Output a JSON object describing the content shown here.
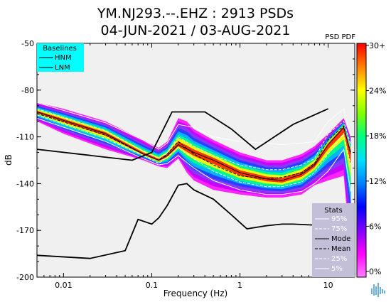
{
  "chart_data": {
    "type": "heatmap",
    "title": "YM.NJ293.--.EHZ : 2913 PSDs",
    "subtitle": "04-JUN-2021 / 03-AUG-2021",
    "xlabel": "Frequency (Hz)",
    "ylabel": "dB",
    "x_scale": "log",
    "xlim": [
      0.005,
      20
    ],
    "ylim": [
      -200,
      -50
    ],
    "x_ticks": [
      "0.01",
      "0.1",
      "1",
      "10"
    ],
    "y_ticks": [
      "-50",
      "-80",
      "-110",
      "-140",
      "-170",
      "-200"
    ],
    "colorbar": {
      "title": "PSD PDF",
      "ticks": [
        "30+",
        "24%",
        "18%",
        "12%",
        "6%",
        "0%"
      ]
    },
    "baselines": {
      "title": "Baselines",
      "items": [
        "HNM",
        "LNM"
      ],
      "hnm": {
        "x": [
          0.005,
          0.06,
          0.1,
          0.17,
          0.4,
          0.8,
          1.5,
          4,
          10
        ],
        "y": [
          -118,
          -125,
          -120,
          -94,
          -94,
          -105,
          -118,
          -102,
          -92
        ]
      },
      "lnm": {
        "x": [
          0.005,
          0.02,
          0.05,
          0.07,
          0.1,
          0.12,
          0.15,
          0.2,
          0.25,
          0.3,
          0.5,
          0.8,
          1,
          1.2,
          2,
          3,
          4,
          10
        ],
        "y": [
          -186,
          -188,
          -183,
          -163,
          -166,
          -162,
          -154,
          -141,
          -140,
          -144,
          -150,
          -160,
          -165,
          -169,
          -167,
          -166,
          -166,
          -167
        ]
      }
    },
    "pdf_band": {
      "x": [
        0.005,
        0.01,
        0.03,
        0.08,
        0.12,
        0.15,
        0.2,
        0.25,
        0.3,
        0.5,
        1,
        2,
        3,
        5,
        7,
        10,
        15,
        18
      ],
      "y_top": [
        -88,
        -92,
        -100,
        -112,
        -117,
        -113,
        -98,
        -100,
        -105,
        -112,
        -120,
        -125,
        -125,
        -121,
        -116,
        -108,
        -98,
        -110
      ],
      "y_bottom": [
        -100,
        -108,
        -118,
        -125,
        -129,
        -130,
        -124,
        -133,
        -138,
        -144,
        -147,
        -149,
        -149,
        -147,
        -141,
        -138,
        -135,
        -185
      ]
    },
    "stats": {
      "title": "Stats",
      "items": [
        "95%",
        "75%",
        "Mode",
        "Mean",
        "25%",
        "5%"
      ],
      "p95": {
        "x": [
          0.005,
          0.03,
          0.08,
          0.12,
          0.15,
          0.2,
          0.3,
          0.5,
          1,
          2,
          3,
          5,
          7,
          10,
          15,
          18
        ],
        "y": [
          -88,
          -101,
          -112,
          -118,
          -114,
          -102,
          -104,
          -110,
          -113,
          -114,
          -115,
          -114,
          -113,
          -100,
          -92,
          -110
        ]
      },
      "p75": {
        "x": [
          0.005,
          0.03,
          0.08,
          0.12,
          0.15,
          0.2,
          0.3,
          0.5,
          1,
          2,
          3,
          5,
          7,
          10,
          15,
          18
        ],
        "y": [
          -92,
          -106,
          -119,
          -124,
          -120,
          -110,
          -116,
          -122,
          -128,
          -131,
          -131,
          -128,
          -124,
          -108,
          -100,
          -115
        ]
      },
      "mode": {
        "x": [
          0.005,
          0.03,
          0.08,
          0.12,
          0.15,
          0.2,
          0.3,
          0.5,
          1,
          2,
          3,
          5,
          7,
          10,
          15,
          18
        ],
        "y": [
          -94,
          -108,
          -121,
          -125,
          -122,
          -115,
          -120,
          -125,
          -133,
          -137,
          -138,
          -134,
          -128,
          -115,
          -104,
          -120
        ]
      },
      "mean": {
        "x": [
          0.005,
          0.03,
          0.08,
          0.12,
          0.15,
          0.2,
          0.3,
          0.5,
          1,
          2,
          3,
          5,
          7,
          10,
          15,
          18
        ],
        "y": [
          -95,
          -109,
          -121,
          -125,
          -121,
          -113,
          -121,
          -128,
          -135,
          -137,
          -136,
          -133,
          -127,
          -112,
          -103,
          -121
        ]
      },
      "p25": {
        "x": [
          0.005,
          0.03,
          0.08,
          0.12,
          0.15,
          0.2,
          0.3,
          0.5,
          1,
          2,
          3,
          5,
          7,
          10,
          15,
          18
        ],
        "y": [
          -96,
          -111,
          -122,
          -127,
          -123,
          -117,
          -124,
          -132,
          -139,
          -142,
          -142,
          -139,
          -133,
          -121,
          -108,
          -128
        ]
      },
      "p5": {
        "x": [
          0.005,
          0.03,
          0.08,
          0.12,
          0.15,
          0.2,
          0.3,
          0.5,
          1,
          2,
          3,
          5,
          7,
          10,
          15,
          18
        ],
        "y": [
          -98,
          -113,
          -124,
          -128,
          -127,
          -122,
          -130,
          -138,
          -144,
          -147,
          -147,
          -145,
          -140,
          -132,
          -118,
          -145
        ]
      }
    },
    "colors": {
      "plot_bg": "#f0f0f0",
      "baseline_box": "#00ffff",
      "stats_box": "#c4bfd8",
      "band": [
        "#ff00ff",
        "#c000ff",
        "#8040ff",
        "#2040ff",
        "#00c0ff",
        "#00ff80",
        "#ffff00",
        "#ff2000"
      ]
    },
    "grid": false,
    "legend_position": "top-left / bottom-right"
  }
}
